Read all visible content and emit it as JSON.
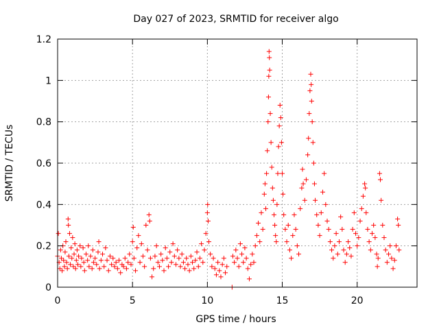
{
  "chart_data": {
    "type": "scatter",
    "title": "Day 027 of 2023, SRMTID for receiver algo",
    "xlabel": "GPS time / hours",
    "ylabel": "SRMTID / TECUs",
    "xlim": [
      0,
      24
    ],
    "ylim": [
      0,
      1.2
    ],
    "x_ticks": [
      0,
      5,
      10,
      15,
      20
    ],
    "x_tick_labels": [
      "0",
      "5",
      "10",
      "15",
      "20"
    ],
    "y_ticks": [
      0,
      0.2,
      0.4,
      0.6,
      0.8,
      1.0,
      1.2
    ],
    "y_tick_labels": [
      "0",
      "0.2",
      "0.4",
      "0.6",
      "0.8",
      "1",
      "1.2"
    ],
    "grid": true,
    "marker": "+",
    "series_color": "#ff0000",
    "series": [
      {
        "name": "SRMTID",
        "points": [
          [
            0.0,
            0.15
          ],
          [
            0.05,
            0.26
          ],
          [
            0.1,
            0.12
          ],
          [
            0.15,
            0.09
          ],
          [
            0.2,
            0.18
          ],
          [
            0.25,
            0.14
          ],
          [
            0.3,
            0.08
          ],
          [
            0.35,
            0.2
          ],
          [
            0.4,
            0.13
          ],
          [
            0.45,
            0.1
          ],
          [
            0.5,
            0.17
          ],
          [
            0.55,
            0.22
          ],
          [
            0.6,
            0.12
          ],
          [
            0.65,
            0.09
          ],
          [
            0.7,
            0.33
          ],
          [
            0.72,
            0.3
          ],
          [
            0.75,
            0.15
          ],
          [
            0.8,
            0.26
          ],
          [
            0.85,
            0.11
          ],
          [
            0.9,
            0.19
          ],
          [
            0.95,
            0.14
          ],
          [
            1.0,
            0.24
          ],
          [
            1.05,
            0.1
          ],
          [
            1.1,
            0.16
          ],
          [
            1.15,
            0.21
          ],
          [
            1.2,
            0.09
          ],
          [
            1.25,
            0.13
          ],
          [
            1.3,
            0.18
          ],
          [
            1.35,
            0.11
          ],
          [
            1.4,
            0.15
          ],
          [
            1.5,
            0.2
          ],
          [
            1.55,
            0.1
          ],
          [
            1.6,
            0.14
          ],
          [
            1.7,
            0.19
          ],
          [
            1.75,
            0.12
          ],
          [
            1.8,
            0.08
          ],
          [
            1.9,
            0.16
          ],
          [
            2.0,
            0.13
          ],
          [
            2.05,
            0.2
          ],
          [
            2.1,
            0.1
          ],
          [
            2.2,
            0.15
          ],
          [
            2.3,
            0.09
          ],
          [
            2.35,
            0.18
          ],
          [
            2.4,
            0.12
          ],
          [
            2.5,
            0.14
          ],
          [
            2.6,
            0.11
          ],
          [
            2.7,
            0.17
          ],
          [
            2.75,
            0.22
          ],
          [
            2.8,
            0.09
          ],
          [
            2.9,
            0.13
          ],
          [
            3.0,
            0.16
          ],
          [
            3.1,
            0.1
          ],
          [
            3.2,
            0.19
          ],
          [
            3.3,
            0.13
          ],
          [
            3.4,
            0.08
          ],
          [
            3.5,
            0.15
          ],
          [
            3.6,
            0.11
          ],
          [
            3.7,
            0.14
          ],
          [
            3.8,
            0.1
          ],
          [
            3.9,
            0.12
          ],
          [
            4.0,
            0.09
          ],
          [
            4.1,
            0.13
          ],
          [
            4.2,
            0.07
          ],
          [
            4.3,
            0.11
          ],
          [
            4.4,
            0.1
          ],
          [
            4.5,
            0.14
          ],
          [
            4.6,
            0.09
          ],
          [
            4.7,
            0.12
          ],
          [
            4.8,
            0.16
          ],
          [
            4.9,
            0.11
          ],
          [
            5.0,
            0.22
          ],
          [
            5.05,
            0.29
          ],
          [
            5.1,
            0.14
          ],
          [
            5.2,
            0.08
          ],
          [
            5.3,
            0.19
          ],
          [
            5.4,
            0.25
          ],
          [
            5.5,
            0.12
          ],
          [
            5.6,
            0.21
          ],
          [
            5.7,
            0.15
          ],
          [
            5.8,
            0.1
          ],
          [
            5.9,
            0.3
          ],
          [
            6.0,
            0.18
          ],
          [
            6.1,
            0.35
          ],
          [
            6.15,
            0.32
          ],
          [
            6.2,
            0.14
          ],
          [
            6.3,
            0.05
          ],
          [
            6.4,
            0.09
          ],
          [
            6.5,
            0.15
          ],
          [
            6.6,
            0.2
          ],
          [
            6.7,
            0.12
          ],
          [
            6.8,
            0.1
          ],
          [
            6.9,
            0.16
          ],
          [
            7.0,
            0.13
          ],
          [
            7.1,
            0.08
          ],
          [
            7.2,
            0.19
          ],
          [
            7.3,
            0.14
          ],
          [
            7.4,
            0.1
          ],
          [
            7.5,
            0.17
          ],
          [
            7.6,
            0.12
          ],
          [
            7.7,
            0.21
          ],
          [
            7.8,
            0.15
          ],
          [
            7.9,
            0.11
          ],
          [
            8.0,
            0.18
          ],
          [
            8.1,
            0.14
          ],
          [
            8.2,
            0.1
          ],
          [
            8.3,
            0.16
          ],
          [
            8.4,
            0.12
          ],
          [
            8.5,
            0.09
          ],
          [
            8.6,
            0.14
          ],
          [
            8.7,
            0.11
          ],
          [
            8.8,
            0.08
          ],
          [
            8.9,
            0.15
          ],
          [
            9.0,
            0.12
          ],
          [
            9.1,
            0.09
          ],
          [
            9.2,
            0.13
          ],
          [
            9.3,
            0.17
          ],
          [
            9.4,
            0.1
          ],
          [
            9.5,
            0.14
          ],
          [
            9.6,
            0.21
          ],
          [
            9.7,
            0.12
          ],
          [
            9.8,
            0.18
          ],
          [
            9.9,
            0.26
          ],
          [
            10.0,
            0.36
          ],
          [
            10.02,
            0.4
          ],
          [
            10.05,
            0.32
          ],
          [
            10.1,
            0.22
          ],
          [
            10.2,
            0.16
          ],
          [
            10.3,
            0.1
          ],
          [
            10.4,
            0.14
          ],
          [
            10.5,
            0.09
          ],
          [
            10.6,
            0.06
          ],
          [
            10.7,
            0.12
          ],
          [
            10.8,
            0.08
          ],
          [
            10.9,
            0.05
          ],
          [
            11.0,
            0.11
          ],
          [
            11.1,
            0.14
          ],
          [
            11.2,
            0.07
          ],
          [
            11.3,
            0.1
          ],
          [
            11.65,
            0.0
          ],
          [
            11.7,
            0.15
          ],
          [
            11.8,
            0.12
          ],
          [
            11.9,
            0.18
          ],
          [
            12.0,
            0.14
          ],
          [
            12.1,
            0.1
          ],
          [
            12.2,
            0.21
          ],
          [
            12.3,
            0.16
          ],
          [
            12.4,
            0.12
          ],
          [
            12.5,
            0.19
          ],
          [
            12.6,
            0.14
          ],
          [
            12.7,
            0.09
          ],
          [
            12.8,
            0.04
          ],
          [
            12.9,
            0.11
          ],
          [
            13.0,
            0.16
          ],
          [
            13.1,
            0.12
          ],
          [
            13.2,
            0.2
          ],
          [
            13.3,
            0.25
          ],
          [
            13.4,
            0.31
          ],
          [
            13.5,
            0.22
          ],
          [
            13.6,
            0.36
          ],
          [
            13.7,
            0.28
          ],
          [
            13.8,
            0.45
          ],
          [
            13.85,
            0.5
          ],
          [
            13.9,
            0.38
          ],
          [
            13.95,
            0.55
          ],
          [
            14.0,
            0.66
          ],
          [
            14.05,
            0.8
          ],
          [
            14.08,
            0.92
          ],
          [
            14.1,
            1.02
          ],
          [
            14.12,
            1.14
          ],
          [
            14.14,
            1.11
          ],
          [
            14.16,
            1.05
          ],
          [
            14.2,
            0.84
          ],
          [
            14.25,
            0.7
          ],
          [
            14.3,
            0.58
          ],
          [
            14.35,
            0.48
          ],
          [
            14.4,
            0.42
          ],
          [
            14.45,
            0.35
          ],
          [
            14.5,
            0.3
          ],
          [
            14.55,
            0.25
          ],
          [
            14.6,
            0.22
          ],
          [
            14.65,
            0.4
          ],
          [
            14.7,
            0.55
          ],
          [
            14.75,
            0.68
          ],
          [
            14.8,
            0.78
          ],
          [
            14.85,
            0.88
          ],
          [
            14.9,
            0.82
          ],
          [
            14.95,
            0.7
          ],
          [
            15.0,
            0.55
          ],
          [
            15.05,
            0.45
          ],
          [
            15.1,
            0.35
          ],
          [
            15.2,
            0.28
          ],
          [
            15.3,
            0.22
          ],
          [
            15.4,
            0.3
          ],
          [
            15.5,
            0.18
          ],
          [
            15.6,
            0.14
          ],
          [
            15.7,
            0.25
          ],
          [
            15.8,
            0.35
          ],
          [
            15.9,
            0.28
          ],
          [
            16.0,
            0.2
          ],
          [
            16.1,
            0.16
          ],
          [
            16.2,
            0.38
          ],
          [
            16.3,
            0.48
          ],
          [
            16.35,
            0.57
          ],
          [
            16.4,
            0.5
          ],
          [
            16.5,
            0.42
          ],
          [
            16.6,
            0.52
          ],
          [
            16.7,
            0.64
          ],
          [
            16.75,
            0.72
          ],
          [
            16.8,
            0.84
          ],
          [
            16.85,
            0.95
          ],
          [
            16.9,
            1.03
          ],
          [
            16.93,
            0.98
          ],
          [
            16.96,
            0.9
          ],
          [
            17.0,
            0.8
          ],
          [
            17.05,
            0.7
          ],
          [
            17.1,
            0.6
          ],
          [
            17.15,
            0.5
          ],
          [
            17.2,
            0.42
          ],
          [
            17.3,
            0.35
          ],
          [
            17.4,
            0.3
          ],
          [
            17.5,
            0.25
          ],
          [
            17.6,
            0.36
          ],
          [
            17.7,
            0.46
          ],
          [
            17.8,
            0.55
          ],
          [
            17.9,
            0.4
          ],
          [
            18.0,
            0.32
          ],
          [
            18.1,
            0.28
          ],
          [
            18.2,
            0.22
          ],
          [
            18.3,
            0.18
          ],
          [
            18.4,
            0.14
          ],
          [
            18.5,
            0.2
          ],
          [
            18.6,
            0.26
          ],
          [
            18.7,
            0.16
          ],
          [
            18.8,
            0.22
          ],
          [
            18.9,
            0.34
          ],
          [
            19.0,
            0.28
          ],
          [
            19.1,
            0.18
          ],
          [
            19.2,
            0.12
          ],
          [
            19.3,
            0.16
          ],
          [
            19.4,
            0.22
          ],
          [
            19.5,
            0.19
          ],
          [
            19.6,
            0.15
          ],
          [
            19.7,
            0.28
          ],
          [
            19.8,
            0.36
          ],
          [
            19.9,
            0.26
          ],
          [
            20.0,
            0.2
          ],
          [
            20.1,
            0.24
          ],
          [
            20.2,
            0.32
          ],
          [
            20.3,
            0.38
          ],
          [
            20.4,
            0.44
          ],
          [
            20.5,
            0.5
          ],
          [
            20.55,
            0.48
          ],
          [
            20.6,
            0.36
          ],
          [
            20.7,
            0.28
          ],
          [
            20.8,
            0.22
          ],
          [
            20.9,
            0.18
          ],
          [
            21.0,
            0.26
          ],
          [
            21.1,
            0.3
          ],
          [
            21.2,
            0.24
          ],
          [
            21.3,
            0.16
          ],
          [
            21.35,
            0.1
          ],
          [
            21.4,
            0.14
          ],
          [
            21.5,
            0.55
          ],
          [
            21.55,
            0.52
          ],
          [
            21.6,
            0.42
          ],
          [
            21.7,
            0.3
          ],
          [
            21.8,
            0.24
          ],
          [
            21.9,
            0.18
          ],
          [
            22.0,
            0.12
          ],
          [
            22.1,
            0.16
          ],
          [
            22.2,
            0.2
          ],
          [
            22.3,
            0.14
          ],
          [
            22.4,
            0.09
          ],
          [
            22.5,
            0.13
          ],
          [
            22.6,
            0.2
          ],
          [
            22.7,
            0.33
          ],
          [
            22.75,
            0.3
          ],
          [
            22.8,
            0.18
          ]
        ]
      }
    ]
  }
}
